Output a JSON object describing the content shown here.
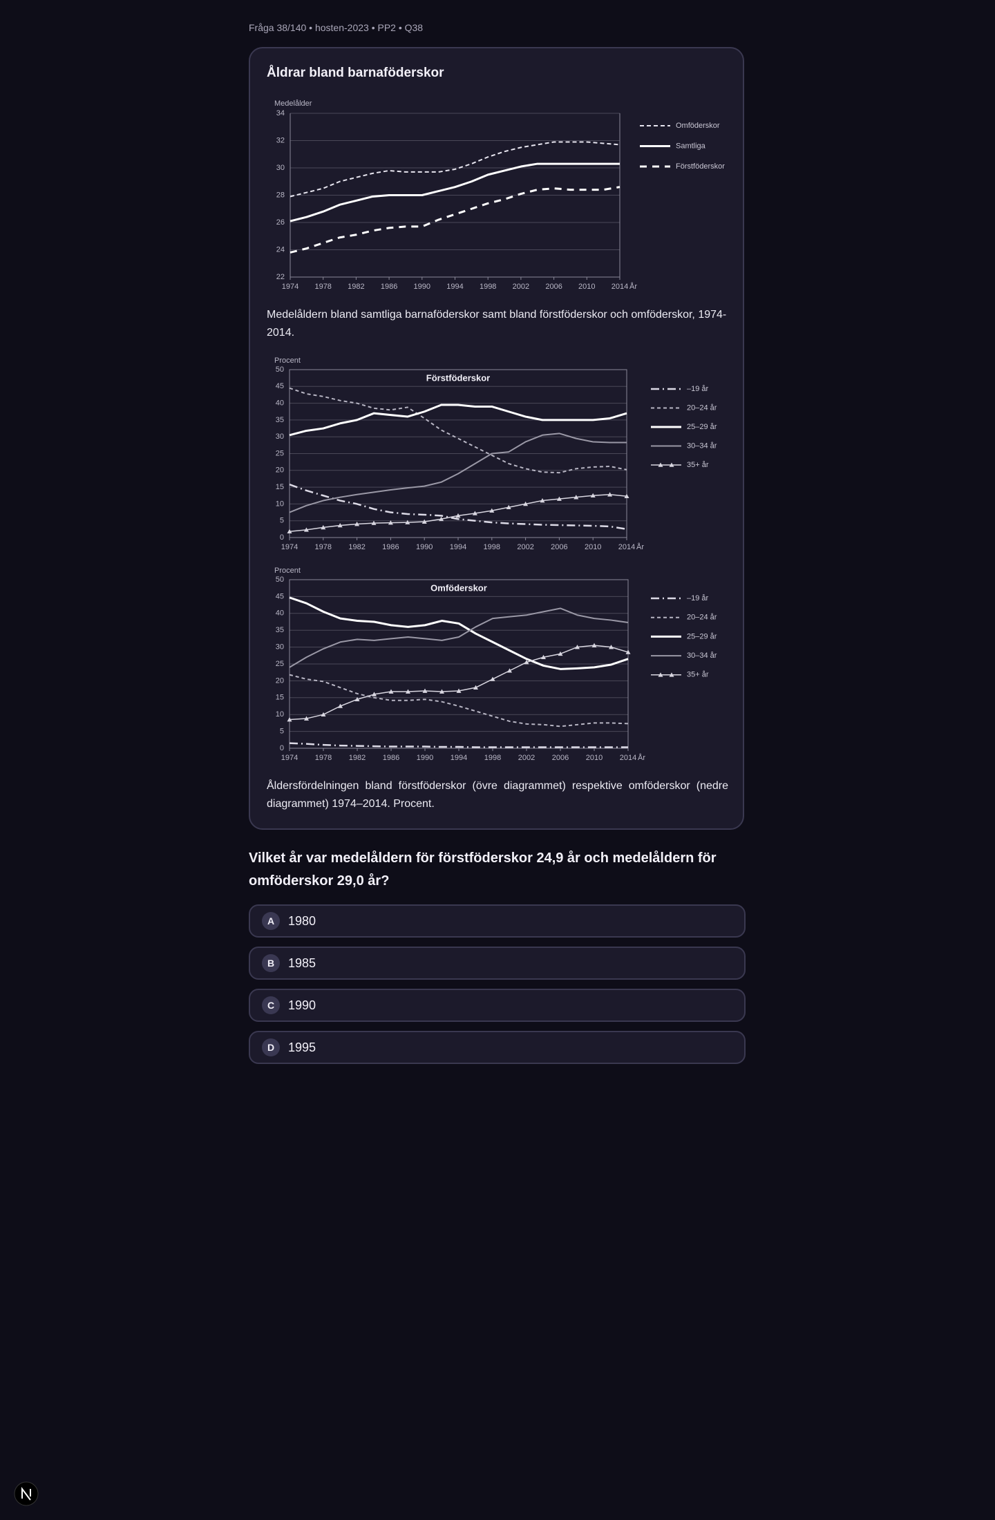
{
  "header": {
    "breadcrumb": "Fråga 38/140 • hosten-2023 • PP2 • Q38"
  },
  "card": {
    "title": "Åldrar bland barnaföderskor",
    "captions": [
      "Medelåldern bland samtliga barnaföderskor samt bland förstföderskor och omföderskor, 1974-2014.",
      "Åldersfördelningen bland förstföderskor (övre diagrammet) respektive omföderskor (nedre diagrammet) 1974–2014. Procent."
    ]
  },
  "charts": [
    {
      "type": "line",
      "y_label": "Medelålder",
      "x_label": "År",
      "grid": true,
      "xlim": [
        1974,
        2014
      ],
      "ylim": [
        22,
        34
      ],
      "xticks": [
        1974,
        1978,
        1982,
        1986,
        1990,
        1994,
        1998,
        2002,
        2006,
        2010,
        2014
      ],
      "yticks": [
        22,
        24,
        26,
        28,
        30,
        32,
        34
      ],
      "x": [
        1974,
        1976,
        1978,
        1980,
        1982,
        1984,
        1986,
        1988,
        1990,
        1992,
        1994,
        1996,
        1998,
        2000,
        2002,
        2004,
        2006,
        2008,
        2010,
        2012,
        2014
      ],
      "series": [
        {
          "name": "Omföderskor",
          "color": "#e8e6f0",
          "dash": "6 4",
          "width": 2,
          "values": [
            27.9,
            28.2,
            28.5,
            29.0,
            29.3,
            29.6,
            29.8,
            29.7,
            29.7,
            29.7,
            29.9,
            30.3,
            30.8,
            31.2,
            31.5,
            31.7,
            31.9,
            31.9,
            31.9,
            31.8,
            31.7
          ]
        },
        {
          "name": "Samtliga",
          "color": "#ffffff",
          "dash": "none",
          "width": 3,
          "values": [
            26.1,
            26.4,
            26.8,
            27.3,
            27.6,
            27.9,
            28.0,
            28.0,
            28.0,
            28.3,
            28.6,
            29.0,
            29.5,
            29.8,
            30.1,
            30.3,
            30.3,
            30.3,
            30.3,
            30.3,
            30.3
          ]
        },
        {
          "name": "Förstföderskor",
          "color": "#ffffff",
          "dash": "10 8",
          "width": 3,
          "values": [
            23.8,
            24.1,
            24.5,
            24.9,
            25.1,
            25.4,
            25.6,
            25.7,
            25.7,
            26.2,
            26.6,
            27.0,
            27.4,
            27.7,
            28.1,
            28.4,
            28.5,
            28.4,
            28.4,
            28.4,
            28.6
          ]
        }
      ]
    },
    {
      "type": "line",
      "title": "Förstföderskor",
      "y_label": "Procent",
      "x_label": "År",
      "grid": true,
      "xlim": [
        1974,
        2014
      ],
      "ylim": [
        0,
        50
      ],
      "xticks": [
        1974,
        1978,
        1982,
        1986,
        1990,
        1994,
        1998,
        2002,
        2006,
        2010,
        2014
      ],
      "yticks": [
        0,
        5,
        10,
        15,
        20,
        25,
        30,
        35,
        40,
        45,
        50
      ],
      "x": [
        1974,
        1976,
        1978,
        1980,
        1982,
        1984,
        1986,
        1988,
        1990,
        1992,
        1994,
        1996,
        1998,
        2000,
        2002,
        2004,
        2006,
        2008,
        2010,
        2012,
        2014
      ],
      "series": [
        {
          "name": "–19 år",
          "color": "#dcdae6",
          "dash": "12 5 2 5",
          "width": 2.5,
          "values": [
            15.8,
            14.0,
            12.5,
            11.0,
            10.0,
            8.5,
            7.5,
            7.0,
            6.8,
            6.5,
            5.5,
            5.0,
            4.5,
            4.2,
            4.0,
            3.8,
            3.7,
            3.6,
            3.5,
            3.3,
            2.5
          ]
        },
        {
          "name": "20–24 år",
          "color": "#b8b6c4",
          "dash": "5 4",
          "width": 2,
          "values": [
            44.5,
            42.8,
            42.0,
            40.8,
            40.0,
            38.5,
            38.0,
            38.8,
            35.5,
            32.0,
            29.5,
            27.0,
            24.5,
            22.0,
            20.5,
            19.5,
            19.3,
            20.5,
            21.0,
            21.2,
            20.2
          ]
        },
        {
          "name": "25–29 år",
          "color": "#ffffff",
          "dash": "none",
          "width": 3,
          "values": [
            30.5,
            31.8,
            32.5,
            34.0,
            35.0,
            37.0,
            36.5,
            36.0,
            37.5,
            39.5,
            39.5,
            39.0,
            39.0,
            37.5,
            36.0,
            35.0,
            35.0,
            35.0,
            35.0,
            35.5,
            37.0
          ]
        },
        {
          "name": "30–34 år",
          "color": "#9a98a6",
          "dash": "none",
          "width": 2,
          "values": [
            7.5,
            9.5,
            11.0,
            12.0,
            12.8,
            13.5,
            14.2,
            14.8,
            15.3,
            16.5,
            19.0,
            22.0,
            25.0,
            25.5,
            28.5,
            30.5,
            31.0,
            29.5,
            28.5,
            28.3,
            28.3
          ]
        },
        {
          "name": "35+ år",
          "color": "#d8d6e0",
          "dash": "none",
          "width": 1.5,
          "marker": "triangle",
          "values": [
            1.8,
            2.3,
            3.0,
            3.6,
            4.0,
            4.3,
            4.4,
            4.5,
            4.7,
            5.5,
            6.5,
            7.2,
            8.0,
            9.0,
            10.0,
            11.0,
            11.5,
            12.0,
            12.5,
            12.8,
            12.3
          ]
        }
      ]
    },
    {
      "type": "line",
      "title": "Omföderskor",
      "y_label": "Procent",
      "x_label": "År",
      "grid": true,
      "xlim": [
        1974,
        2014
      ],
      "ylim": [
        0,
        50
      ],
      "xticks": [
        1974,
        1978,
        1982,
        1986,
        1990,
        1994,
        1998,
        2002,
        2006,
        2010,
        2014
      ],
      "yticks": [
        0,
        5,
        10,
        15,
        20,
        25,
        30,
        35,
        40,
        45,
        50
      ],
      "x": [
        1974,
        1976,
        1978,
        1980,
        1982,
        1984,
        1986,
        1988,
        1990,
        1992,
        1994,
        1996,
        1998,
        2000,
        2002,
        2004,
        2006,
        2008,
        2010,
        2012,
        2014
      ],
      "series": [
        {
          "name": "–19 år",
          "color": "#dcdae6",
          "dash": "12 5 2 5",
          "width": 2.5,
          "values": [
            1.5,
            1.3,
            1.0,
            0.8,
            0.7,
            0.6,
            0.5,
            0.5,
            0.5,
            0.4,
            0.4,
            0.3,
            0.3,
            0.3,
            0.3,
            0.3,
            0.3,
            0.3,
            0.3,
            0.3,
            0.3
          ]
        },
        {
          "name": "20–24 år",
          "color": "#b8b6c4",
          "dash": "5 4",
          "width": 2,
          "values": [
            21.8,
            20.5,
            19.8,
            18.0,
            16.2,
            15.0,
            14.2,
            14.2,
            14.5,
            13.8,
            12.5,
            11.0,
            9.5,
            8.0,
            7.2,
            7.0,
            6.5,
            7.0,
            7.5,
            7.5,
            7.3
          ]
        },
        {
          "name": "25–29 år",
          "color": "#ffffff",
          "dash": "none",
          "width": 3,
          "values": [
            44.7,
            43.0,
            40.5,
            38.5,
            37.8,
            37.5,
            36.5,
            36.0,
            36.5,
            37.8,
            37.0,
            34.0,
            31.5,
            29.0,
            26.5,
            24.5,
            23.5,
            23.7,
            24.0,
            24.8,
            26.5
          ]
        },
        {
          "name": "30–34 år",
          "color": "#9a98a6",
          "dash": "none",
          "width": 2,
          "values": [
            24.0,
            27.0,
            29.5,
            31.5,
            32.3,
            32.0,
            32.5,
            33.0,
            32.5,
            32.0,
            33.0,
            36.0,
            38.5,
            39.0,
            39.5,
            40.5,
            41.5,
            39.5,
            38.5,
            38.0,
            37.3
          ]
        },
        {
          "name": "35+ år",
          "color": "#d8d6e0",
          "dash": "none",
          "width": 1.5,
          "marker": "triangle",
          "values": [
            8.5,
            8.8,
            10.0,
            12.5,
            14.5,
            16.0,
            16.8,
            16.8,
            17.0,
            16.8,
            17.0,
            18.0,
            20.5,
            23.0,
            25.5,
            27.0,
            28.0,
            30.0,
            30.5,
            30.0,
            28.5
          ]
        }
      ]
    }
  ],
  "question": {
    "text": "Vilket år var medelåldern för förstföderskor 24,9 år och medelåldern för omföderskor 29,0 år?",
    "options": [
      {
        "letter": "A",
        "text": "1980"
      },
      {
        "letter": "B",
        "text": "1985"
      },
      {
        "letter": "C",
        "text": "1990"
      },
      {
        "letter": "D",
        "text": "1995"
      }
    ]
  }
}
